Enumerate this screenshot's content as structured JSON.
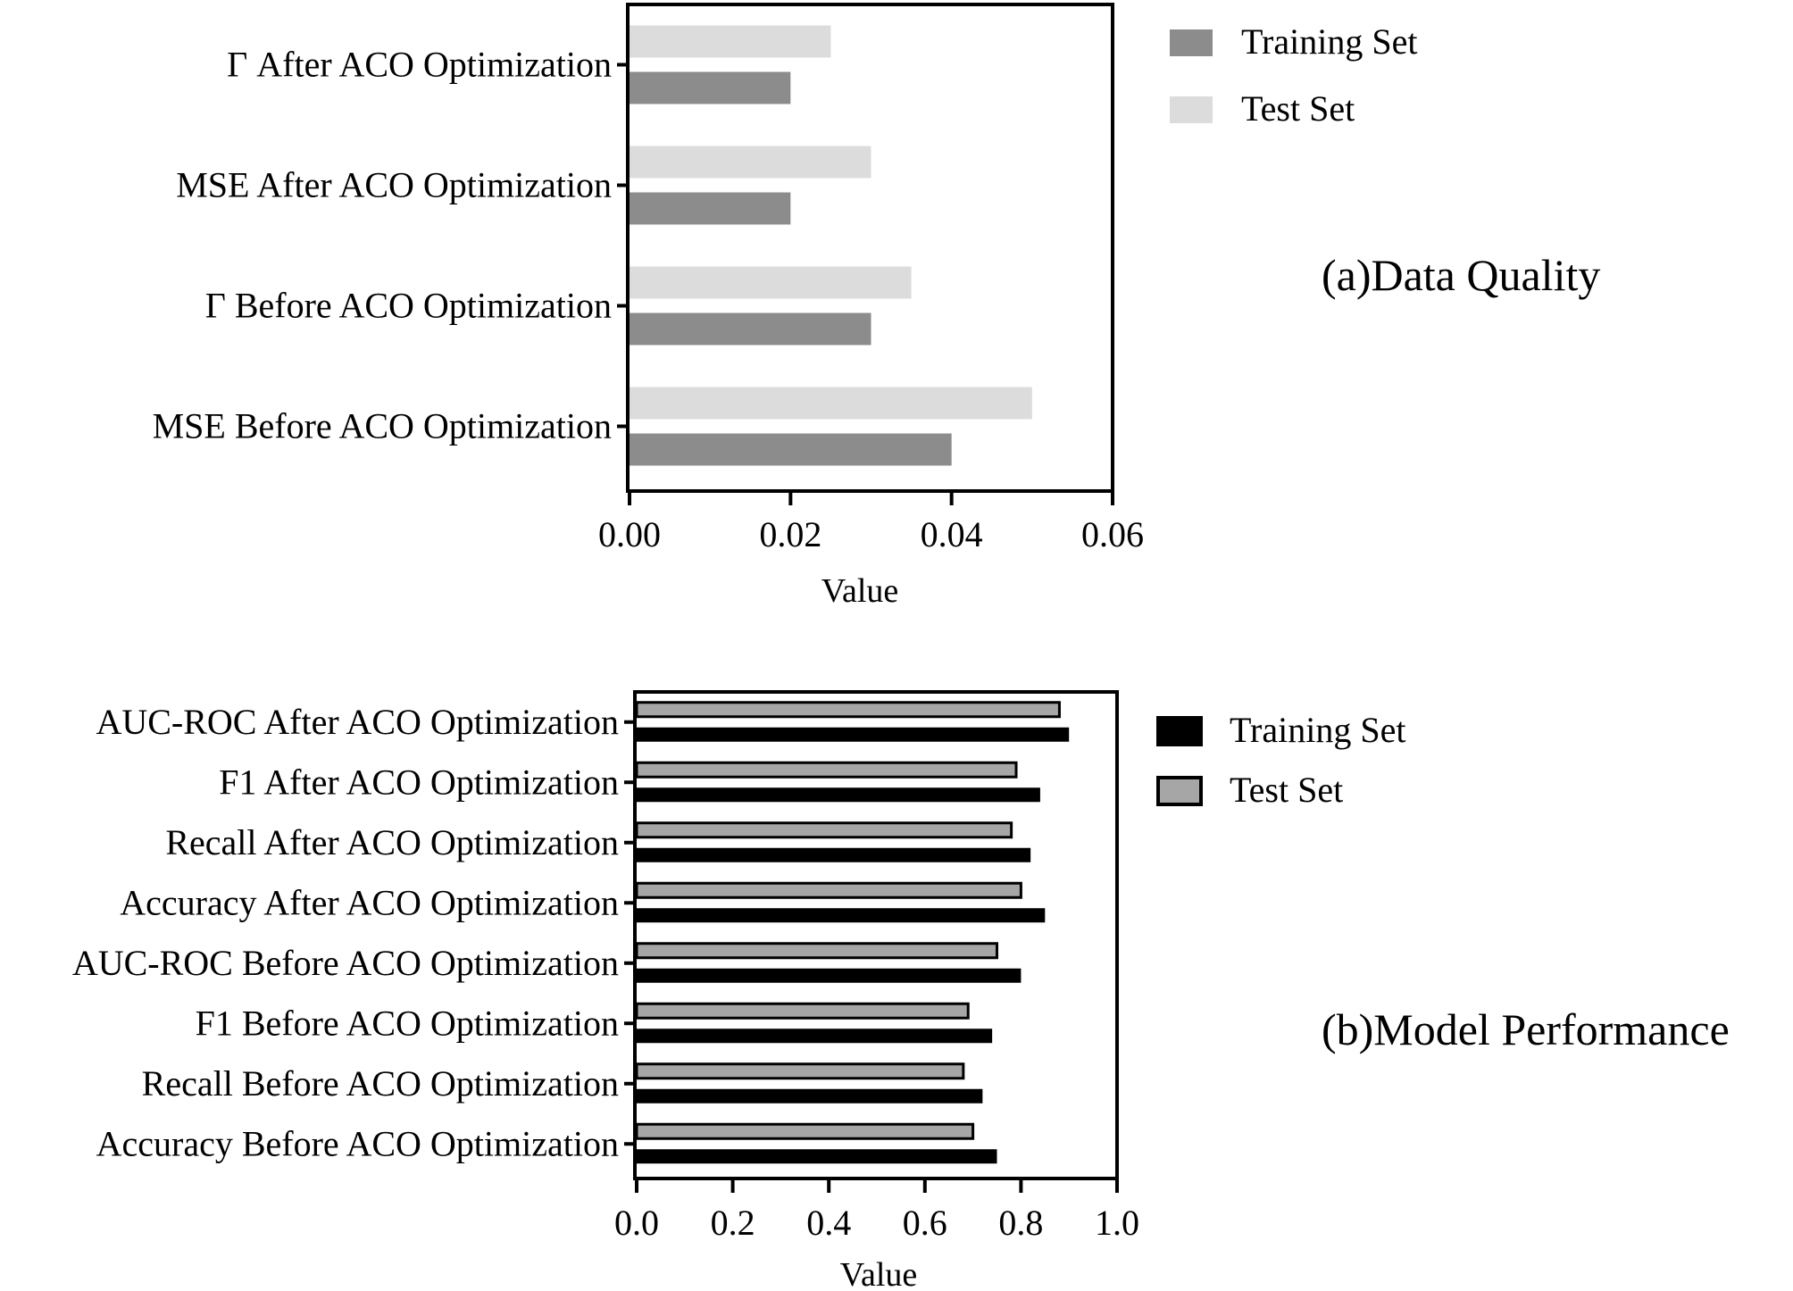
{
  "chart_data": [
    {
      "type": "bar",
      "orientation": "horizontal",
      "caption": "(a)Data Quality",
      "categories": [
        "Γ After ACO Optimization",
        "MSE After ACO Optimization",
        "Γ Before ACO Optimization",
        "MSE Before ACO Optimization"
      ],
      "series": [
        {
          "name": "Training Set",
          "values": [
            0.02,
            0.02,
            0.03,
            0.04
          ],
          "color": "#8c8c8c"
        },
        {
          "name": "Test Set",
          "values": [
            0.025,
            0.03,
            0.035,
            0.05
          ],
          "color": "#dcdcdc"
        }
      ],
      "xlabel": "Value",
      "xlim": [
        0,
        0.06
      ],
      "xticks": [
        0,
        0.02,
        0.04,
        0.06
      ],
      "xtick_labels": [
        "0.00",
        "0.02",
        "0.04",
        "0.06"
      ],
      "legend_position": "right",
      "grid": false
    },
    {
      "type": "bar",
      "orientation": "horizontal",
      "caption": "(b)Model Performance",
      "categories": [
        "AUC-ROC After ACO Optimization",
        "F1 After ACO Optimization",
        "Recall After ACO Optimization",
        "Accuracy After ACO Optimization",
        "AUC-ROC Before ACO Optimization",
        "F1 Before ACO Optimization",
        "Recall Before ACO Optimization",
        "Accuracy Before ACO Optimization"
      ],
      "series": [
        {
          "name": "Training Set",
          "values": [
            0.9,
            0.84,
            0.82,
            0.85,
            0.8,
            0.74,
            0.72,
            0.75
          ],
          "color": "#000000"
        },
        {
          "name": "Test Set",
          "values": [
            0.88,
            0.79,
            0.78,
            0.8,
            0.75,
            0.69,
            0.68,
            0.7
          ],
          "color": "#a6a6a6"
        }
      ],
      "xlabel": "Value",
      "xlim": [
        0,
        1.0
      ],
      "xticks": [
        0,
        0.2,
        0.4,
        0.6,
        0.8,
        1.0
      ],
      "xtick_labels": [
        "0.0",
        "0.2",
        "0.4",
        "0.6",
        "0.8",
        "1.0"
      ],
      "legend_position": "right",
      "grid": false
    }
  ]
}
